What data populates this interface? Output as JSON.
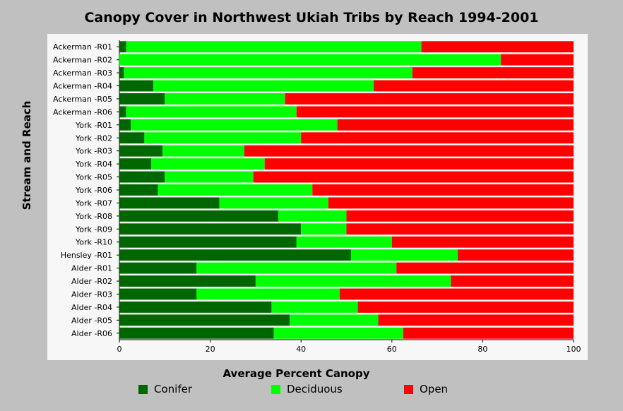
{
  "chart_data": {
    "type": "bar",
    "orientation": "horizontal",
    "stacked": true,
    "title": "Canopy Cover in Northwest Ukiah Tribs by Reach 1994-2001",
    "xlabel": "Average Percent Canopy",
    "ylabel": "Stream and Reach",
    "xlim": [
      0,
      100
    ],
    "xticks": [
      0,
      20,
      40,
      60,
      80,
      100
    ],
    "legend_position": "bottom",
    "categories": [
      "Ackerman -R01",
      "Ackerman -R02",
      "Ackerman -R03",
      "Ackerman -R04",
      "Ackerman -R05",
      "Ackerman -R06",
      "York -R01",
      "York -R02",
      "York -R03",
      "York -R04",
      "York -R05",
      "York -R06",
      "York -R07",
      "York -R08",
      "York -R09",
      "York -R10",
      "Hensley -R01",
      "Alder -R01",
      "Alder -R02",
      "Alder -R03",
      "Alder -R04",
      "Alder -R05",
      "Alder -R06"
    ],
    "series": [
      {
        "name": "Conifer",
        "color": "#006600",
        "values": [
          1.5,
          0,
          1,
          7.5,
          10,
          1.5,
          2.5,
          5.5,
          9.5,
          7,
          10,
          8.5,
          22,
          35,
          40,
          39,
          51,
          17,
          30,
          17,
          33.5,
          37.5,
          34
        ]
      },
      {
        "name": "Deciduous",
        "color": "#00ff00",
        "values": [
          65,
          84,
          63.5,
          48.5,
          26.5,
          37.5,
          45.5,
          34.5,
          18,
          25,
          19.5,
          34,
          24,
          15,
          10,
          21,
          23.5,
          44,
          43,
          31.5,
          19,
          19.5,
          28.5
        ]
      },
      {
        "name": "Open",
        "color": "#ff0000",
        "values": [
          33.5,
          16,
          35.5,
          44,
          63.5,
          61,
          52,
          60,
          72.5,
          68,
          70.5,
          57.5,
          54,
          50,
          50,
          40,
          25.5,
          39,
          27,
          51.5,
          47.5,
          43,
          37.5
        ]
      }
    ]
  }
}
